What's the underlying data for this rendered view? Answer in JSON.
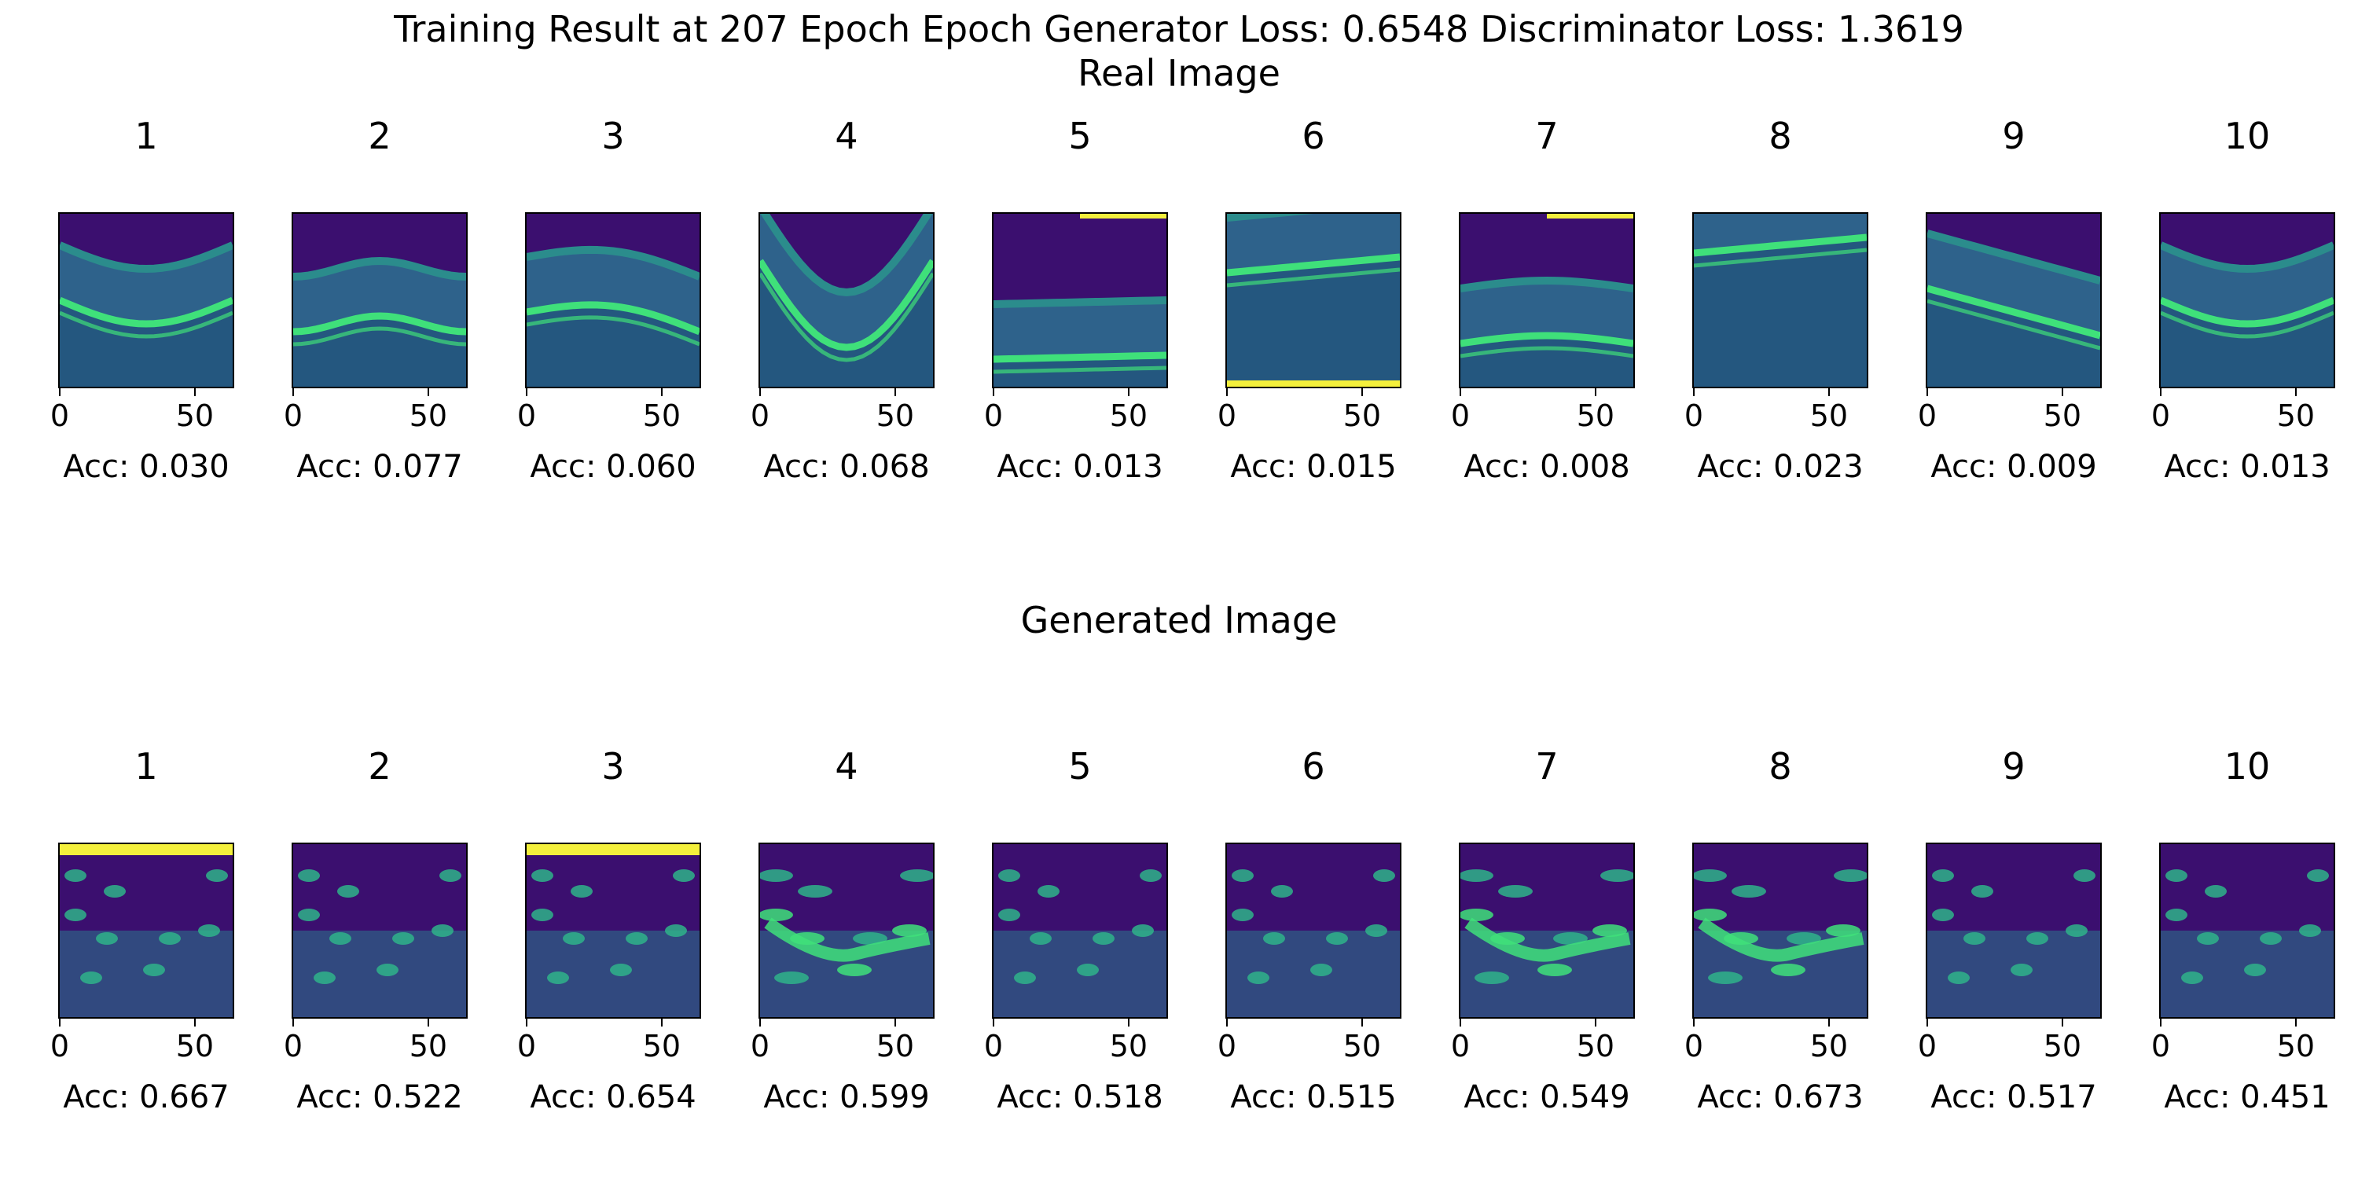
{
  "title": "Training Result at 207 Epoch Epoch Generator Loss: 0.6548 Discriminator Loss: 1.3619",
  "real_title": "Real Image",
  "generated_title": "Generated Image",
  "x_ticks": [
    "0",
    "50"
  ],
  "colors": {
    "background": "#3b0f6f",
    "mid": "#2b8c8c",
    "bright": "#3fe07a",
    "hot": "#f4f03c"
  },
  "chart_data": [
    {
      "type": "image-grid",
      "title": "Real Image",
      "panels": [
        {
          "label": "1",
          "acc": "Acc: 0.030",
          "style": "real-dip"
        },
        {
          "label": "2",
          "acc": "Acc: 0.077",
          "style": "real-double"
        },
        {
          "label": "3",
          "acc": "Acc: 0.060",
          "style": "real-hump"
        },
        {
          "label": "4",
          "acc": "Acc: 0.068",
          "style": "real-bowl"
        },
        {
          "label": "5",
          "acc": "Acc: 0.013",
          "style": "real-flat-low"
        },
        {
          "label": "6",
          "acc": "Acc: 0.015",
          "style": "real-flat-high"
        },
        {
          "label": "7",
          "acc": "Acc: 0.008",
          "style": "real-flat-mid"
        },
        {
          "label": "8",
          "acc": "Acc: 0.023",
          "style": "real-flat-high-dark"
        },
        {
          "label": "9",
          "acc": "Acc: 0.009",
          "style": "real-slope"
        },
        {
          "label": "10",
          "acc": "Acc: 0.013",
          "style": "real-dip"
        }
      ]
    },
    {
      "type": "image-grid",
      "title": "Generated Image",
      "panels": [
        {
          "label": "1",
          "acc": "Acc: 0.667",
          "style": "gen-topbar"
        },
        {
          "label": "2",
          "acc": "Acc: 0.522",
          "style": "gen-spots"
        },
        {
          "label": "3",
          "acc": "Acc: 0.654",
          "style": "gen-topbar"
        },
        {
          "label": "4",
          "acc": "Acc: 0.599",
          "style": "gen-bright"
        },
        {
          "label": "5",
          "acc": "Acc: 0.518",
          "style": "gen-spots"
        },
        {
          "label": "6",
          "acc": "Acc: 0.515",
          "style": "gen-spots"
        },
        {
          "label": "7",
          "acc": "Acc: 0.549",
          "style": "gen-bright"
        },
        {
          "label": "8",
          "acc": "Acc: 0.673",
          "style": "gen-bright"
        },
        {
          "label": "9",
          "acc": "Acc: 0.517",
          "style": "gen-spots"
        },
        {
          "label": "10",
          "acc": "Acc: 0.451",
          "style": "gen-spots"
        }
      ]
    }
  ]
}
